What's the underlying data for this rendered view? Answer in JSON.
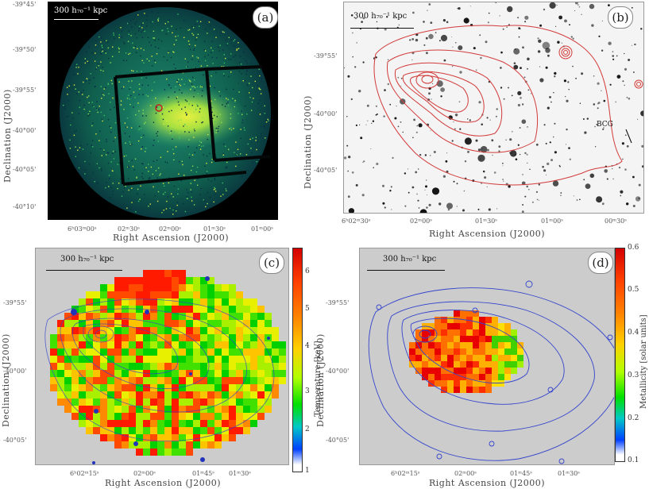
{
  "panel_a": {
    "letter": "(a)",
    "scalebar": "300 h₇₀⁻¹ kpc",
    "xlabel": "Right Ascension (J2000)",
    "ylabel": "Declination (J2000)",
    "xticks": [
      "6ʰ03ᵐ00ˢ",
      "02ᵐ30ˢ",
      "02ᵐ00ˢ",
      "01ᵐ30ˢ",
      "01ᵐ00ˢ"
    ],
    "yticks": [
      "-39°45'",
      "-39°50'",
      "-39°55'",
      "-40°00'",
      "-40°05'",
      "-40°10'"
    ]
  },
  "panel_b": {
    "letter": "(b)",
    "scalebar": "300 h₇₀⁻¹ kpc",
    "xlabel": "Right Ascension (J2000)",
    "ylabel": "Declination (J2000)",
    "xticks": [
      "6ʰ02ᵐ30ˢ",
      "02ᵐ00ˢ",
      "01ᵐ30ˢ",
      "01ᵐ00ˢ",
      "00ᵐ30ˢ"
    ],
    "yticks": [
      "-39°55'",
      "-40°00'",
      "-40°05'"
    ],
    "annotation": "BCG"
  },
  "panel_c": {
    "letter": "(c)",
    "scalebar": "300 h₇₀⁻¹ kpc",
    "xlabel": "Right Ascension (J2000)",
    "ylabel": "Declination (J2000)",
    "xticks": [
      "6ʰ02ᵐ15ˢ",
      "02ᵐ00ˢ",
      "01ᵐ45ˢ",
      "01ᵐ30ˢ"
    ],
    "yticks": [
      "-39°55'",
      "-40°00'",
      "-40°05'"
    ],
    "colorbar_label": "Temperature [keV]",
    "colorbar_ticks": [
      "6",
      "5",
      "4",
      "3",
      "2",
      "1"
    ],
    "colorbar_range": [
      1,
      6.7
    ]
  },
  "panel_d": {
    "letter": "(d)",
    "scalebar": "300 h₇₀⁻¹ kpc",
    "xlabel": "Right Ascension (J2000)",
    "ylabel": "Declination (J2000)",
    "xticks": [
      "6ʰ02ᵐ15ˢ",
      "02ᵐ00ˢ",
      "01ᵐ45ˢ",
      "01ᵐ30ˢ"
    ],
    "yticks": [
      "-39°55'",
      "-40°00'",
      "-40°05'"
    ],
    "colorbar_label": "Metallicity [solar units]",
    "colorbar_ticks": [
      "0.6",
      "0.5",
      "0.4",
      "0.3",
      "0.2",
      "0.1"
    ],
    "colorbar_range": [
      0.1,
      0.6
    ]
  },
  "colors": {
    "xray_bg": "#000000",
    "contour_red": "#d23a3a",
    "contour_blue": "#3344cc",
    "map_bg": "#cccccc"
  }
}
